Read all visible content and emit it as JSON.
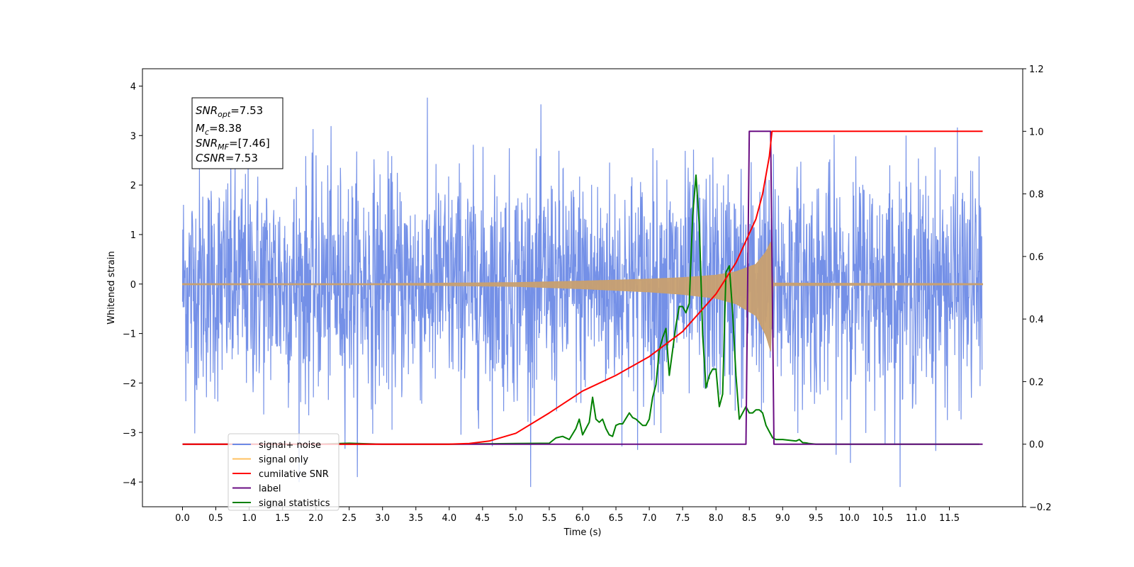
{
  "chart_data": {
    "type": "line",
    "xlabel": "Time (s)",
    "ylabel": "Whitened strain",
    "xlim": [
      -0.6,
      12.6
    ],
    "ylim_left": [
      -4.5,
      4.35
    ],
    "ylim_right": [
      -0.2,
      1.2
    ],
    "x_ticks": [
      "0.0",
      "0.5",
      "1.0",
      "1.5",
      "2.0",
      "2.5",
      "3.0",
      "3.5",
      "4.0",
      "4.5",
      "5.0",
      "5.5",
      "6.0",
      "6.5",
      "7.0",
      "7.5",
      "8.0",
      "8.5",
      "9.0",
      "9.5",
      "10.0",
      "10.5",
      "11.0",
      "11.5"
    ],
    "y_ticks_left": [
      "4",
      "3",
      "2",
      "1",
      "0",
      "−1",
      "−2",
      "−3",
      "−4"
    ],
    "y_ticks_right": [
      "1.2",
      "1.0",
      "0.8",
      "0.6",
      "0.4",
      "0.2",
      "0.0",
      "−0.2"
    ],
    "info_box": {
      "lines": [
        {
          "main": "SNR",
          "sub": "opt",
          "value": "=7.53"
        },
        {
          "main": "M",
          "sub": "c",
          "value": "=8.38"
        },
        {
          "main": "SNR",
          "sub": "MF",
          "value": "=[7.46]"
        },
        {
          "main": "CSNR",
          "sub": "",
          "value": "=7.53"
        }
      ]
    },
    "legend": {
      "position": "lower-left",
      "entries": [
        {
          "label": "signal+ noise",
          "color": "#6d8ae6"
        },
        {
          "label": "signal only",
          "color": "#ffc060"
        },
        {
          "label": "cumilative SNR",
          "color": "#ff0000"
        },
        {
          "label": "label",
          "color": "#6a0d83"
        },
        {
          "label": "signal statistics",
          "color": "#008000"
        }
      ]
    },
    "series": [
      {
        "name": "signal+ noise",
        "axis": "left",
        "color": "#6d8ae6",
        "description_values": {
          "time_start": 0.0,
          "time_end": 11.99,
          "noise_std": 1.0,
          "typical_max": 2.7,
          "typical_min": -2.7
        }
      },
      {
        "name": "signal only",
        "axis": "left",
        "color": "#c8a070",
        "envelope": {
          "x": [
            0.0,
            3.0,
            5.0,
            6.0,
            7.0,
            7.5,
            8.0,
            8.3,
            8.6,
            8.75,
            8.82,
            8.85,
            12.0
          ],
          "amp": [
            0.01,
            0.01,
            0.03,
            0.06,
            0.1,
            0.13,
            0.18,
            0.25,
            0.4,
            0.65,
            0.85,
            0.02,
            0.01
          ]
        }
      },
      {
        "name": "cumilative SNR",
        "axis": "right",
        "color": "#ff0000",
        "x": [
          0.0,
          2.0,
          4.0,
          4.3,
          4.6,
          5.0,
          5.5,
          6.0,
          6.5,
          7.0,
          7.5,
          8.0,
          8.3,
          8.6,
          8.7,
          8.8,
          8.84,
          8.85,
          9.0,
          10.0,
          11.0,
          12.0
        ],
        "y": [
          0.0,
          0.0,
          0.0,
          0.002,
          0.01,
          0.035,
          0.1,
          0.17,
          0.22,
          0.28,
          0.36,
          0.48,
          0.58,
          0.72,
          0.8,
          0.92,
          1.0,
          1.0,
          1.0,
          1.0,
          1.0,
          1.0
        ]
      },
      {
        "name": "label",
        "axis": "right",
        "color": "#6a0d83",
        "x": [
          0.0,
          8.45,
          8.5,
          8.82,
          8.87,
          12.0
        ],
        "y": [
          0.0,
          0.0,
          1.0,
          1.0,
          0.0,
          0.0
        ]
      },
      {
        "name": "signal statistics",
        "axis": "right",
        "color": "#008000",
        "x": [
          0.0,
          2.0,
          2.5,
          3.0,
          4.0,
          5.0,
          5.5,
          5.6,
          5.7,
          5.8,
          5.9,
          5.95,
          6.0,
          6.05,
          6.1,
          6.15,
          6.2,
          6.25,
          6.3,
          6.35,
          6.4,
          6.45,
          6.5,
          6.55,
          6.6,
          6.7,
          6.75,
          6.8,
          6.9,
          6.95,
          7.0,
          7.05,
          7.1,
          7.15,
          7.2,
          7.25,
          7.3,
          7.35,
          7.4,
          7.45,
          7.5,
          7.55,
          7.6,
          7.65,
          7.7,
          7.75,
          7.8,
          7.85,
          7.9,
          7.95,
          8.0,
          8.05,
          8.1,
          8.15,
          8.2,
          8.25,
          8.3,
          8.35,
          8.4,
          8.45,
          8.5,
          8.55,
          8.6,
          8.65,
          8.7,
          8.75,
          8.8,
          8.85,
          8.9,
          9.0,
          9.2,
          9.25,
          9.3,
          9.35,
          9.4,
          9.5,
          10.0,
          11.0,
          11.95
        ],
        "y": [
          0.0,
          0.0,
          0.003,
          0.0,
          0.0,
          0.002,
          0.003,
          0.02,
          0.025,
          0.015,
          0.05,
          0.08,
          0.03,
          0.05,
          0.07,
          0.15,
          0.08,
          0.07,
          0.08,
          0.05,
          0.03,
          0.025,
          0.06,
          0.065,
          0.065,
          0.1,
          0.085,
          0.08,
          0.06,
          0.06,
          0.08,
          0.15,
          0.19,
          0.3,
          0.34,
          0.37,
          0.22,
          0.3,
          0.38,
          0.44,
          0.44,
          0.42,
          0.45,
          0.73,
          0.86,
          0.7,
          0.35,
          0.18,
          0.22,
          0.24,
          0.24,
          0.12,
          0.16,
          0.55,
          0.57,
          0.42,
          0.22,
          0.08,
          0.1,
          0.12,
          0.1,
          0.1,
          0.11,
          0.11,
          0.1,
          0.06,
          0.04,
          0.02,
          0.015,
          0.015,
          0.01,
          0.015,
          0.005,
          0.004,
          0.002,
          0.0,
          0.0,
          0.0,
          0.0
        ]
      }
    ]
  }
}
